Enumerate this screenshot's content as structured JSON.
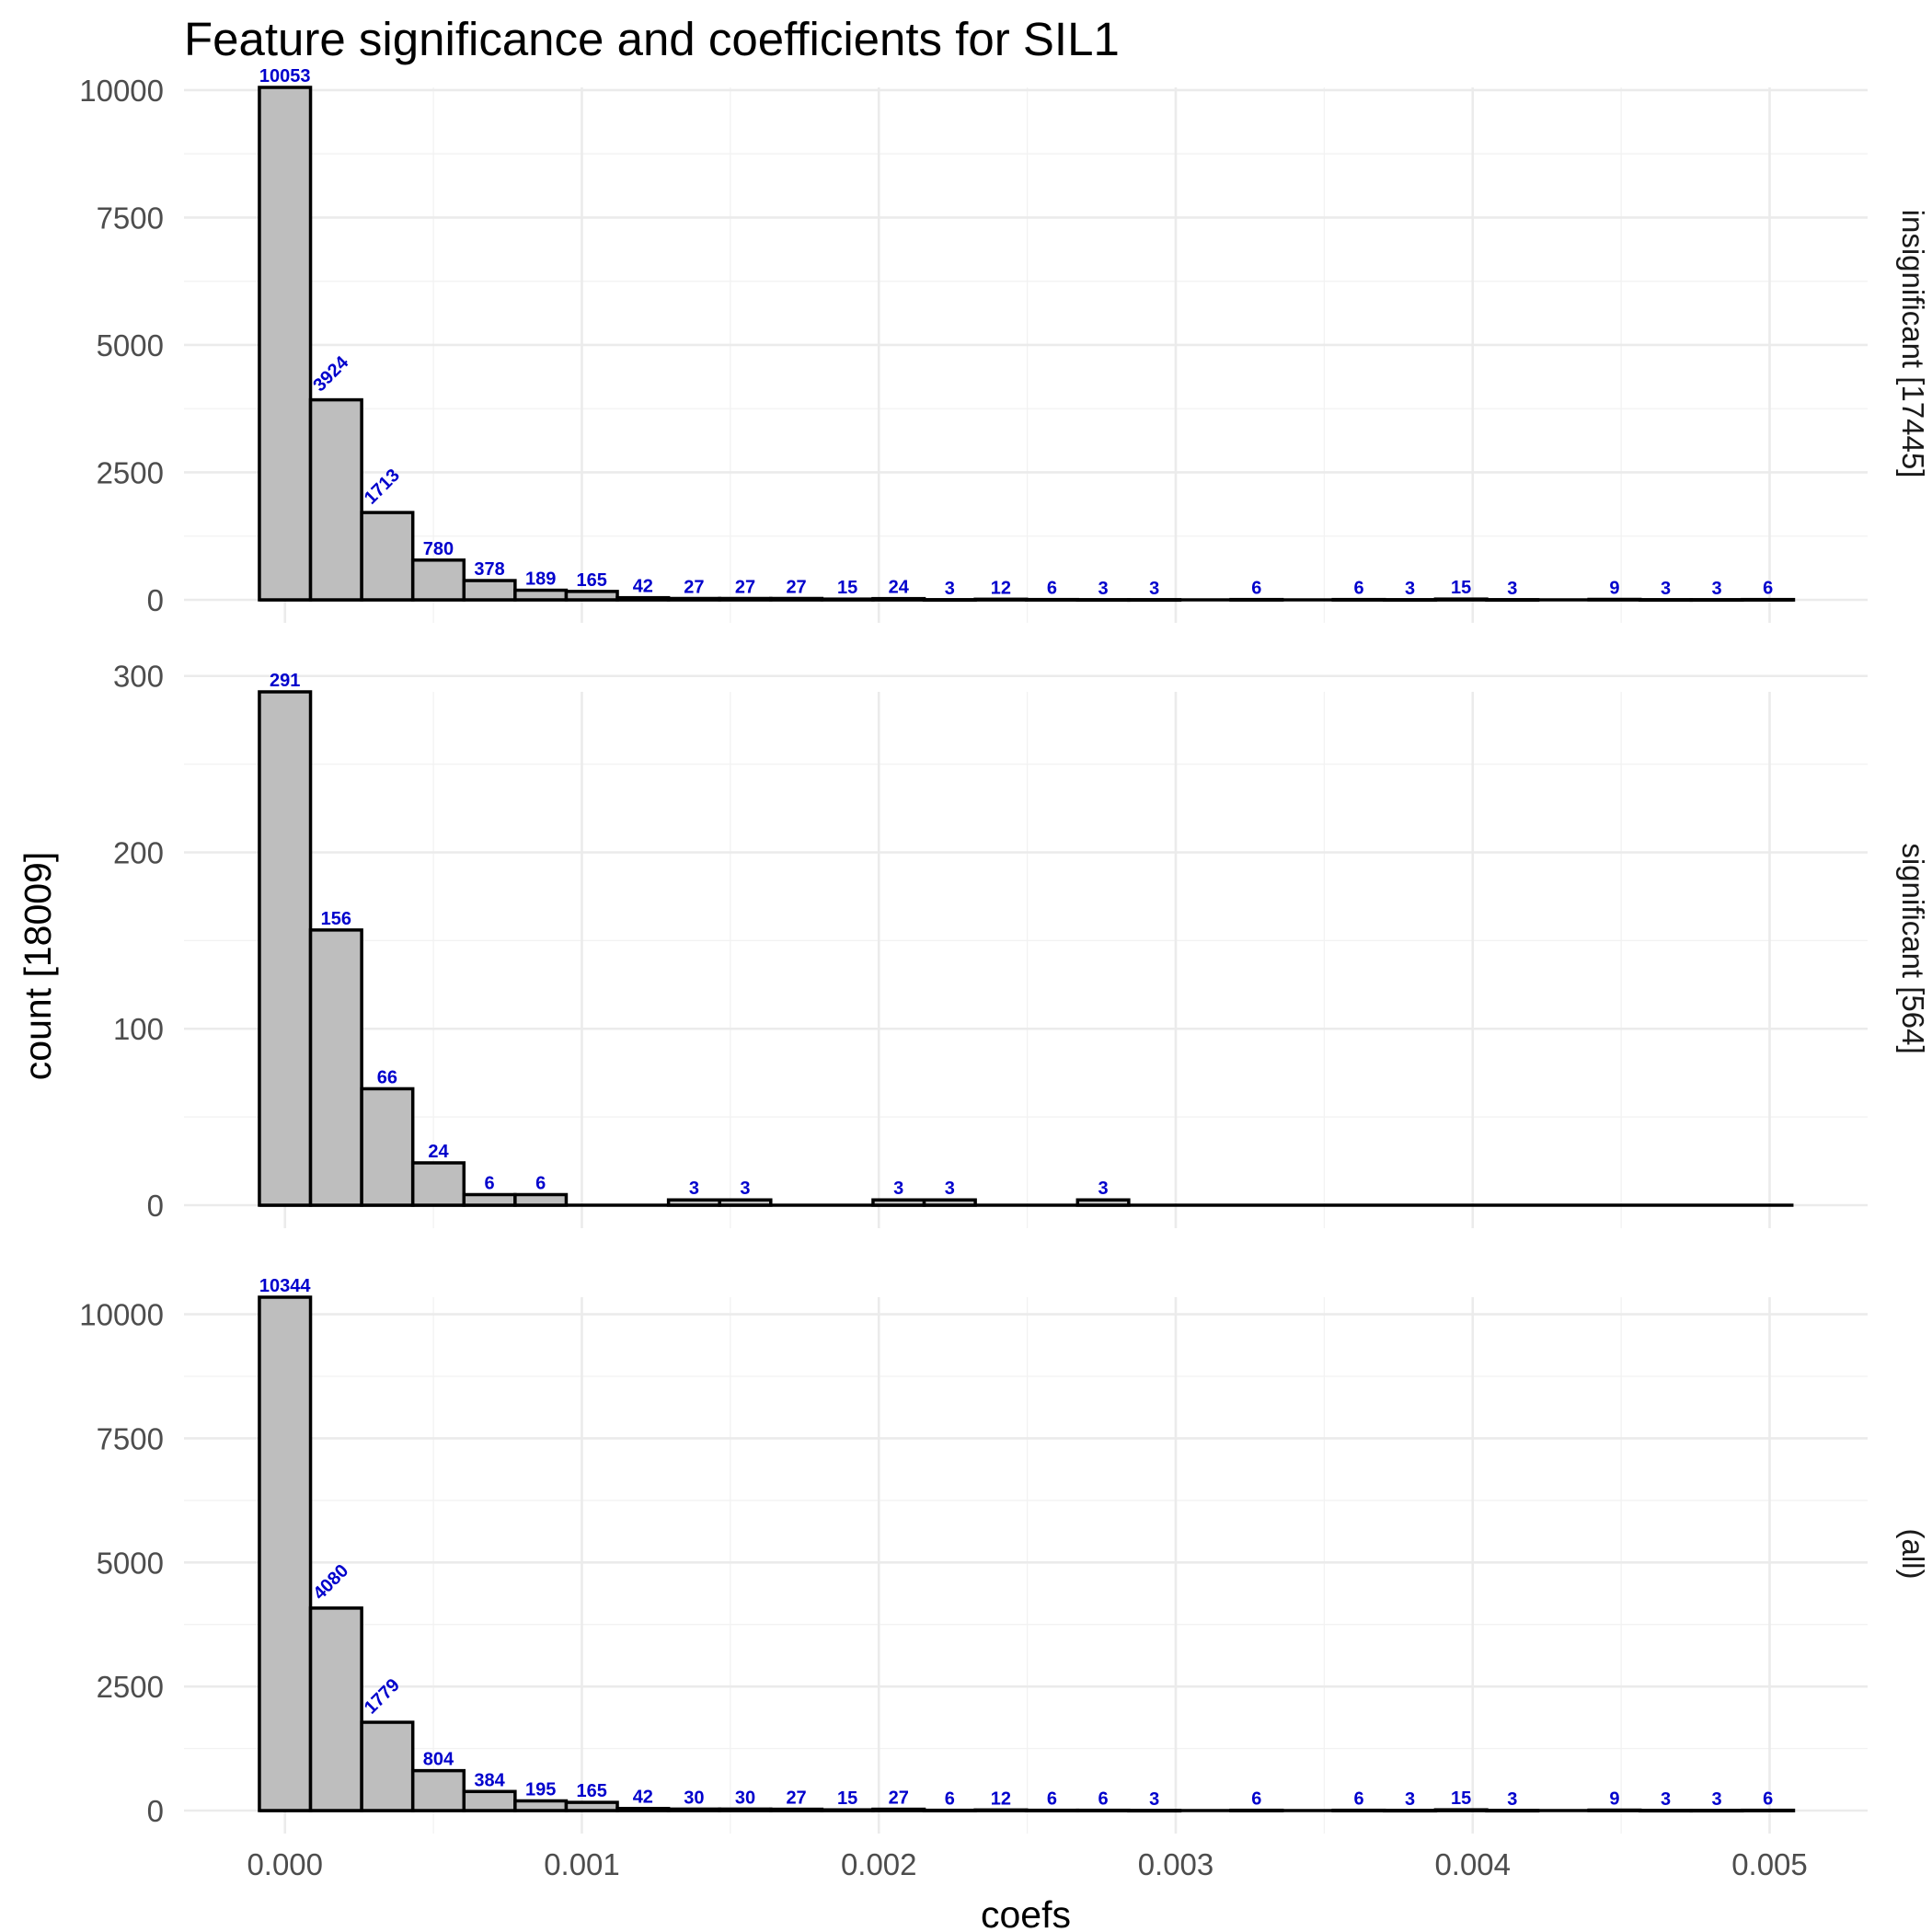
{
  "chart_data": {
    "type": "bar",
    "subtype": "faceted-histogram",
    "title": "Feature significance and coefficients for SIL1",
    "xlabel": "coefs",
    "ylabel": "count [18009]",
    "x_ticks": [
      0.0,
      0.001,
      0.002,
      0.003,
      0.004,
      0.005
    ],
    "x_tick_labels": [
      "0.000",
      "0.001",
      "0.002",
      "0.003",
      "0.004",
      "0.005"
    ],
    "xlim": [
      -0.00034,
      0.00533
    ],
    "bin_width": 0.00017222,
    "bin_start": -8.611e-05,
    "bin_count": 30,
    "grid": true,
    "bar_fill": "#bebebe",
    "bar_outline": "#000000",
    "label_color": "#0000cc",
    "facets": [
      {
        "strip_label": "insignificant [17445]",
        "ylim": [
          0,
          10053
        ],
        "y_ticks": [
          0,
          2500,
          5000,
          7500,
          10000
        ],
        "y_tick_labels": [
          "0",
          "2500",
          "5000",
          "7500",
          "10000"
        ],
        "counts": [
          10053,
          3924,
          1713,
          780,
          378,
          189,
          165,
          42,
          27,
          27,
          27,
          15,
          24,
          3,
          12,
          6,
          3,
          3,
          0,
          6,
          0,
          6,
          3,
          15,
          3,
          0,
          9,
          3,
          3,
          6
        ],
        "labels": [
          "10053",
          "3924",
          "1713",
          "780",
          "378",
          "189",
          "165",
          "42",
          "27",
          "27",
          "27",
          "15",
          "24",
          "3",
          "12",
          "6",
          "3",
          "3",
          "",
          "6",
          "",
          "6",
          "3",
          "15",
          "3",
          "",
          "9",
          "3",
          "3",
          "6"
        ],
        "rotated_labels": [
          1,
          2
        ]
      },
      {
        "strip_label": "significant [564]",
        "ylim": [
          0,
          291
        ],
        "y_ticks": [
          0,
          100,
          200,
          300
        ],
        "y_tick_labels": [
          "0",
          "100",
          "200",
          "300"
        ],
        "counts": [
          291,
          156,
          66,
          24,
          6,
          6,
          0,
          0,
          3,
          3,
          0,
          0,
          3,
          3,
          0,
          0,
          3,
          0,
          0,
          0,
          0,
          0,
          0,
          0,
          0,
          0,
          0,
          0,
          0,
          0
        ],
        "labels": [
          "291",
          "156",
          "66",
          "24",
          "6",
          "6",
          "",
          "",
          "3",
          "3",
          "",
          "",
          "3",
          "3",
          "",
          "",
          "3",
          "",
          "",
          "",
          "",
          "",
          "",
          "",
          "",
          "",
          "",
          "",
          "",
          ""
        ],
        "rotated_labels": []
      },
      {
        "strip_label": "(all)",
        "ylim": [
          0,
          10344
        ],
        "y_ticks": [
          0,
          2500,
          5000,
          7500,
          10000
        ],
        "y_tick_labels": [
          "0",
          "2500",
          "5000",
          "7500",
          "10000"
        ],
        "counts": [
          10344,
          4080,
          1779,
          804,
          384,
          195,
          165,
          42,
          30,
          30,
          27,
          15,
          27,
          6,
          12,
          6,
          6,
          3,
          0,
          6,
          0,
          6,
          3,
          15,
          3,
          0,
          9,
          3,
          3,
          6
        ],
        "labels": [
          "10344",
          "4080",
          "1779",
          "804",
          "384",
          "195",
          "165",
          "42",
          "30",
          "30",
          "27",
          "15",
          "27",
          "6",
          "12",
          "6",
          "6",
          "3",
          "",
          "6",
          "",
          "6",
          "3",
          "15",
          "3",
          "",
          "9",
          "3",
          "3",
          "6"
        ],
        "rotated_labels": [
          1,
          2
        ]
      }
    ]
  }
}
